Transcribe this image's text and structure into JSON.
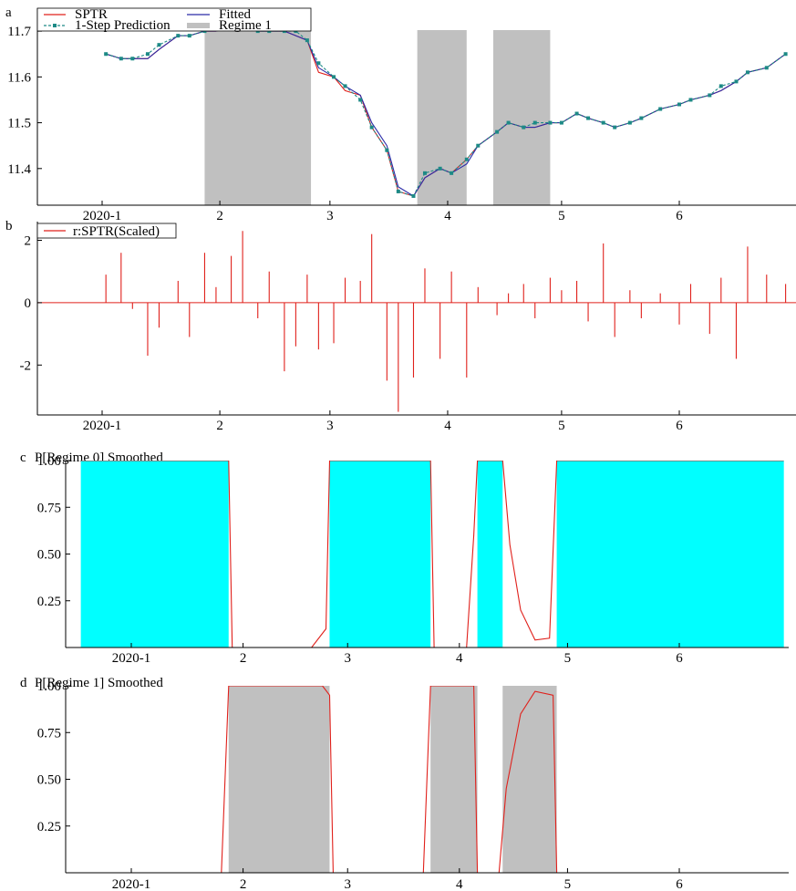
{
  "chart_data": [
    {
      "letter": "a",
      "type": "line",
      "title": "",
      "xlabel": "",
      "ylabel": "",
      "x_ticks": [
        "2020-1",
        "2",
        "3",
        "4",
        "5",
        "6"
      ],
      "y_ticks": [
        "11.4",
        "11.5",
        "11.6",
        "11.7"
      ],
      "ylim": [
        11.32,
        11.75
      ],
      "legend_position": "top-left",
      "legend": [
        "SPTR",
        "Fitted",
        "1-Step Prediction",
        "Regime 1"
      ],
      "regime1_spans": [
        [
          "2020-01-28",
          "2020-02-25"
        ],
        [
          "2020-03-24",
          "2020-04-06"
        ],
        [
          "2020-04-13",
          "2020-04-28"
        ]
      ],
      "series": [
        {
          "name": "SPTR",
          "color": "#e0201b",
          "x": [
            "2020-01-02",
            "2020-01-06",
            "2020-01-09",
            "2020-01-13",
            "2020-01-16",
            "2020-01-21",
            "2020-01-24",
            "2020-01-28",
            "2020-01-31",
            "2020-02-04",
            "2020-02-07",
            "2020-02-11",
            "2020-02-14",
            "2020-02-18",
            "2020-02-21",
            "2020-02-24",
            "2020-02-27",
            "2020-03-02",
            "2020-03-05",
            "2020-03-09",
            "2020-03-12",
            "2020-03-16",
            "2020-03-19",
            "2020-03-23",
            "2020-03-26",
            "2020-03-30",
            "2020-04-02",
            "2020-04-06",
            "2020-04-09",
            "2020-04-14",
            "2020-04-17",
            "2020-04-21",
            "2020-04-24",
            "2020-04-28",
            "2020-05-01",
            "2020-05-05",
            "2020-05-08",
            "2020-05-12",
            "2020-05-15",
            "2020-05-19",
            "2020-05-22",
            "2020-05-27",
            "2020-06-01",
            "2020-06-04",
            "2020-06-09",
            "2020-06-12",
            "2020-06-16",
            "2020-06-19",
            "2020-06-24",
            "2020-06-29"
          ],
          "y": [
            11.65,
            11.64,
            11.64,
            11.64,
            11.66,
            11.69,
            11.69,
            11.7,
            11.7,
            11.71,
            11.71,
            11.7,
            11.7,
            11.7,
            11.69,
            11.68,
            11.61,
            11.6,
            11.57,
            11.56,
            11.49,
            11.44,
            11.35,
            11.34,
            11.38,
            11.4,
            11.39,
            11.42,
            11.45,
            11.48,
            11.5,
            11.49,
            11.49,
            11.5,
            11.5,
            11.52,
            11.51,
            11.5,
            11.49,
            11.5,
            11.51,
            11.53,
            11.54,
            11.55,
            11.56,
            11.57,
            11.59,
            11.61,
            11.62,
            11.65
          ]
        },
        {
          "name": "Fitted",
          "color": "#2b2ba8",
          "x": [
            "2020-01-02",
            "2020-01-06",
            "2020-01-09",
            "2020-01-13",
            "2020-01-16",
            "2020-01-21",
            "2020-01-24",
            "2020-01-28",
            "2020-01-31",
            "2020-02-04",
            "2020-02-07",
            "2020-02-11",
            "2020-02-14",
            "2020-02-18",
            "2020-02-21",
            "2020-02-24",
            "2020-02-27",
            "2020-03-02",
            "2020-03-05",
            "2020-03-09",
            "2020-03-12",
            "2020-03-16",
            "2020-03-19",
            "2020-03-23",
            "2020-03-26",
            "2020-03-30",
            "2020-04-02",
            "2020-04-06",
            "2020-04-09",
            "2020-04-14",
            "2020-04-17",
            "2020-04-21",
            "2020-04-24",
            "2020-04-28",
            "2020-05-01",
            "2020-05-05",
            "2020-05-08",
            "2020-05-12",
            "2020-05-15",
            "2020-05-19",
            "2020-05-22",
            "2020-05-27",
            "2020-06-01",
            "2020-06-04",
            "2020-06-09",
            "2020-06-12",
            "2020-06-16",
            "2020-06-19",
            "2020-06-24",
            "2020-06-29"
          ],
          "y": [
            11.65,
            11.64,
            11.64,
            11.64,
            11.66,
            11.69,
            11.69,
            11.7,
            11.7,
            11.71,
            11.71,
            11.7,
            11.7,
            11.7,
            11.69,
            11.68,
            11.62,
            11.6,
            11.58,
            11.56,
            11.5,
            11.45,
            11.36,
            11.34,
            11.38,
            11.4,
            11.39,
            11.41,
            11.45,
            11.48,
            11.5,
            11.49,
            11.49,
            11.5,
            11.5,
            11.52,
            11.51,
            11.5,
            11.49,
            11.5,
            11.51,
            11.53,
            11.54,
            11.55,
            11.56,
            11.57,
            11.59,
            11.61,
            11.62,
            11.65
          ]
        },
        {
          "name": "1-Step Prediction",
          "color": "#1d8a86",
          "x": [
            "2020-01-02",
            "2020-01-06",
            "2020-01-09",
            "2020-01-13",
            "2020-01-16",
            "2020-01-21",
            "2020-01-24",
            "2020-01-28",
            "2020-01-31",
            "2020-02-04",
            "2020-02-07",
            "2020-02-11",
            "2020-02-14",
            "2020-02-18",
            "2020-02-21",
            "2020-02-24",
            "2020-02-27",
            "2020-03-02",
            "2020-03-05",
            "2020-03-09",
            "2020-03-12",
            "2020-03-16",
            "2020-03-19",
            "2020-03-23",
            "2020-03-26",
            "2020-03-30",
            "2020-04-02",
            "2020-04-06",
            "2020-04-09",
            "2020-04-14",
            "2020-04-17",
            "2020-04-21",
            "2020-04-24",
            "2020-04-28",
            "2020-05-01",
            "2020-05-05",
            "2020-05-08",
            "2020-05-12",
            "2020-05-15",
            "2020-05-19",
            "2020-05-22",
            "2020-05-27",
            "2020-06-01",
            "2020-06-04",
            "2020-06-09",
            "2020-06-12",
            "2020-06-16",
            "2020-06-19",
            "2020-06-24",
            "2020-06-29"
          ],
          "y": [
            11.65,
            11.64,
            11.64,
            11.65,
            11.67,
            11.69,
            11.69,
            11.7,
            11.71,
            11.71,
            11.71,
            11.7,
            11.7,
            11.7,
            11.7,
            11.68,
            11.63,
            11.6,
            11.58,
            11.55,
            11.49,
            11.44,
            11.35,
            11.34,
            11.39,
            11.4,
            11.39,
            11.42,
            11.45,
            11.48,
            11.5,
            11.49,
            11.5,
            11.5,
            11.5,
            11.52,
            11.51,
            11.5,
            11.49,
            11.5,
            11.51,
            11.53,
            11.54,
            11.55,
            11.56,
            11.58,
            11.59,
            11.61,
            11.62,
            11.65
          ]
        }
      ]
    },
    {
      "letter": "b",
      "type": "bar",
      "title": "",
      "xlabel": "",
      "ylabel": "",
      "x_ticks": [
        "2020-1",
        "2",
        "3",
        "4",
        "5",
        "6"
      ],
      "y_ticks": [
        "-2",
        "0",
        "2"
      ],
      "ylim": [
        -3.6,
        2.6
      ],
      "legend_position": "top-left",
      "series": [
        {
          "name": "r:SPTR(Scaled)",
          "color": "#e0201b",
          "x": [
            "2020-01-02",
            "2020-01-06",
            "2020-01-09",
            "2020-01-13",
            "2020-01-16",
            "2020-01-21",
            "2020-01-24",
            "2020-01-28",
            "2020-01-31",
            "2020-02-04",
            "2020-02-07",
            "2020-02-11",
            "2020-02-14",
            "2020-02-18",
            "2020-02-21",
            "2020-02-24",
            "2020-02-27",
            "2020-03-02",
            "2020-03-05",
            "2020-03-09",
            "2020-03-12",
            "2020-03-16",
            "2020-03-19",
            "2020-03-23",
            "2020-03-26",
            "2020-03-30",
            "2020-04-02",
            "2020-04-06",
            "2020-04-09",
            "2020-04-14",
            "2020-04-17",
            "2020-04-21",
            "2020-04-24",
            "2020-04-28",
            "2020-05-01",
            "2020-05-05",
            "2020-05-08",
            "2020-05-12",
            "2020-05-15",
            "2020-05-19",
            "2020-05-22",
            "2020-05-27",
            "2020-06-01",
            "2020-06-04",
            "2020-06-09",
            "2020-06-12",
            "2020-06-16",
            "2020-06-19",
            "2020-06-24",
            "2020-06-29"
          ],
          "values": [
            0.9,
            1.6,
            -0.2,
            -1.7,
            -0.8,
            0.7,
            -1.1,
            1.6,
            0.5,
            1.5,
            2.3,
            -0.5,
            1.0,
            -2.2,
            -1.4,
            0.9,
            -1.5,
            -1.3,
            0.8,
            0.7,
            2.2,
            -2.5,
            -3.5,
            -2.4,
            1.1,
            -1.8,
            1.0,
            -2.4,
            0.5,
            -0.4,
            0.3,
            0.6,
            -0.5,
            0.8,
            0.4,
            0.7,
            -0.6,
            1.9,
            -1.1,
            0.4,
            -0.5,
            0.3,
            -0.7,
            0.6,
            -1.0,
            0.8,
            -1.8,
            1.8,
            0.9,
            0.6
          ]
        }
      ]
    },
    {
      "letter": "c",
      "type": "area",
      "title": "P[Regime 0] Smoothed",
      "xlabel": "",
      "ylabel": "",
      "x_ticks": [
        "2020-1",
        "2",
        "3",
        "4",
        "5",
        "6"
      ],
      "y_ticks": [
        "0.25",
        "0.50",
        "0.75",
        "1.00"
      ],
      "ylim": [
        0,
        1
      ],
      "fill_color": "#00ffff",
      "regime0_spans": [
        [
          "2019-12-18",
          "2020-01-28"
        ],
        [
          "2020-02-25",
          "2020-03-24"
        ],
        [
          "2020-04-06",
          "2020-04-13"
        ],
        [
          "2020-04-28",
          "2020-06-30"
        ]
      ],
      "series": [
        {
          "name": "",
          "color": "#e0201b",
          "x": [
            "2019-12-18",
            "2020-01-28",
            "2020-01-29",
            "2020-02-20",
            "2020-02-24",
            "2020-02-25",
            "2020-03-24",
            "2020-03-25",
            "2020-04-03",
            "2020-04-05",
            "2020-04-06",
            "2020-04-13",
            "2020-04-15",
            "2020-04-18",
            "2020-04-22",
            "2020-04-26",
            "2020-04-28",
            "2020-06-30"
          ],
          "y": [
            1.0,
            1.0,
            0.0,
            0.0,
            0.1,
            1.0,
            1.0,
            0.0,
            0.0,
            0.6,
            1.0,
            1.0,
            0.55,
            0.2,
            0.04,
            0.05,
            1.0,
            1.0
          ]
        }
      ]
    },
    {
      "letter": "d",
      "type": "area",
      "title": "P[Regime 1] Smoothed",
      "xlabel": "",
      "ylabel": "",
      "x_ticks": [
        "2020-1",
        "2",
        "3",
        "4",
        "5",
        "6"
      ],
      "y_ticks": [
        "0.25",
        "0.50",
        "0.75",
        "1.00"
      ],
      "ylim": [
        0,
        1
      ],
      "fill_color": "#c0c0c0",
      "regime1_spans": [
        [
          "2020-01-28",
          "2020-02-25"
        ],
        [
          "2020-03-24",
          "2020-04-06"
        ],
        [
          "2020-04-13",
          "2020-04-28"
        ]
      ],
      "series": [
        {
          "name": "",
          "color": "#e0201b",
          "x": [
            "2019-12-18",
            "2020-01-26",
            "2020-01-28",
            "2020-02-23",
            "2020-02-25",
            "2020-02-26",
            "2020-03-22",
            "2020-03-24",
            "2020-04-05",
            "2020-04-06",
            "2020-04-12",
            "2020-04-14",
            "2020-04-18",
            "2020-04-22",
            "2020-04-27",
            "2020-04-28",
            "2020-06-30"
          ],
          "y": [
            0.0,
            0.0,
            1.0,
            1.0,
            0.95,
            0.0,
            0.0,
            1.0,
            1.0,
            0.0,
            0.0,
            0.45,
            0.85,
            0.97,
            0.95,
            0.0,
            0.0
          ]
        }
      ]
    }
  ]
}
